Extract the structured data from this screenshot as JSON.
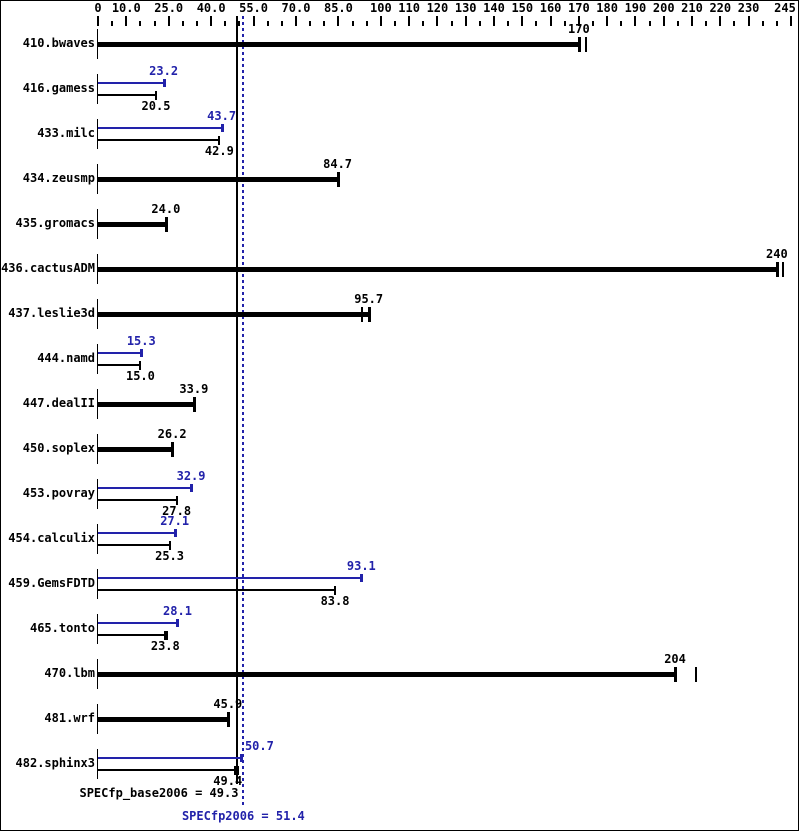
{
  "chart_data": {
    "type": "bar",
    "orientation": "horizontal",
    "title": "",
    "xlabel": "",
    "ylabel": "",
    "legend": "none",
    "grid": false,
    "axis": {
      "range": [
        0,
        245
      ],
      "major_ticks": [
        {
          "value": 0,
          "label": "0"
        },
        {
          "value": 10,
          "label": "10.0"
        },
        {
          "value": 25,
          "label": "25.0"
        },
        {
          "value": 40,
          "label": "40.0"
        },
        {
          "value": 55,
          "label": "55.0"
        },
        {
          "value": 70,
          "label": "70.0"
        },
        {
          "value": 85,
          "label": "85.0"
        },
        {
          "value": 100,
          "label": "100"
        },
        {
          "value": 110,
          "label": "110"
        },
        {
          "value": 120,
          "label": "120"
        },
        {
          "value": 130,
          "label": "130"
        },
        {
          "value": 140,
          "label": "140"
        },
        {
          "value": 150,
          "label": "150"
        },
        {
          "value": 160,
          "label": "160"
        },
        {
          "value": 170,
          "label": "170"
        },
        {
          "value": 180,
          "label": "180"
        },
        {
          "value": 190,
          "label": "190"
        },
        {
          "value": 200,
          "label": "200"
        },
        {
          "value": 210,
          "label": "210"
        },
        {
          "value": 220,
          "label": "220"
        },
        {
          "value": 230,
          "label": "230"
        },
        {
          "value": 245,
          "label": "245"
        }
      ],
      "minor_step": 5
    },
    "colors": {
      "base": "#000000",
      "peak": "#2222aa"
    },
    "benchmarks": [
      {
        "name": "410.bwaves",
        "base": 170,
        "base_label": "170",
        "peak": null,
        "peak_label": null,
        "base_extra_ticks": [
          172.5
        ]
      },
      {
        "name": "416.gamess",
        "base": 20.5,
        "base_label": "20.5",
        "peak": 23.2,
        "peak_label": "23.2",
        "base_extra_ticks": []
      },
      {
        "name": "433.milc",
        "base": 42.9,
        "base_label": "42.9",
        "peak": 43.7,
        "peak_label": "43.7",
        "base_extra_ticks": []
      },
      {
        "name": "434.zeusmp",
        "base": 84.7,
        "base_label": "84.7",
        "peak": null,
        "peak_label": null,
        "base_extra_ticks": []
      },
      {
        "name": "435.gromacs",
        "base": 24.0,
        "base_label": "24.0",
        "peak": null,
        "peak_label": null,
        "base_extra_ticks": []
      },
      {
        "name": "436.cactusADM",
        "base": 240,
        "base_label": "240",
        "peak": null,
        "peak_label": null,
        "base_extra_ticks": [
          242
        ]
      },
      {
        "name": "437.leslie3d",
        "base": 95.7,
        "base_label": "95.7",
        "peak": null,
        "peak_label": null,
        "base_extra_ticks": [
          93.5
        ]
      },
      {
        "name": "444.namd",
        "base": 15.0,
        "base_label": "15.0",
        "peak": 15.3,
        "peak_label": "15.3",
        "base_extra_ticks": []
      },
      {
        "name": "447.dealII",
        "base": 33.9,
        "base_label": "33.9",
        "peak": null,
        "peak_label": null,
        "base_extra_ticks": []
      },
      {
        "name": "450.soplex",
        "base": 26.2,
        "base_label": "26.2",
        "peak": null,
        "peak_label": null,
        "base_extra_ticks": []
      },
      {
        "name": "453.povray",
        "base": 27.8,
        "base_label": "27.8",
        "peak": 32.9,
        "peak_label": "32.9",
        "base_extra_ticks": []
      },
      {
        "name": "454.calculix",
        "base": 25.3,
        "base_label": "25.3",
        "peak": 27.1,
        "peak_label": "27.1",
        "base_extra_ticks": []
      },
      {
        "name": "459.GemsFDTD",
        "base": 83.8,
        "base_label": "83.8",
        "peak": 93.1,
        "peak_label": "93.1",
        "base_extra_ticks": []
      },
      {
        "name": "465.tonto",
        "base": 23.8,
        "base_label": "23.8",
        "peak": 28.1,
        "peak_label": "28.1",
        "base_extra_ticks": [
          24.4
        ]
      },
      {
        "name": "470.lbm",
        "base": 204,
        "base_label": "204",
        "peak": null,
        "peak_label": null,
        "base_extra_ticks": [
          211.5
        ]
      },
      {
        "name": "481.wrf",
        "base": 45.9,
        "base_label": "45.9",
        "peak": null,
        "peak_label": null,
        "base_extra_ticks": []
      },
      {
        "name": "482.sphinx3",
        "base": 49.4,
        "base_label": "49.4",
        "peak": 50.7,
        "peak_label": "50.7",
        "base_extra_ticks": [
          48.6
        ],
        "base_label_dx": -10,
        "peak_label_dx": 18
      }
    ],
    "mean_lines": {
      "base": 49.3,
      "peak": 51.4
    }
  },
  "summary": {
    "base_text": "SPECfp_base2006 = 49.3",
    "peak_text": "SPECfp2006 = 51.4"
  }
}
